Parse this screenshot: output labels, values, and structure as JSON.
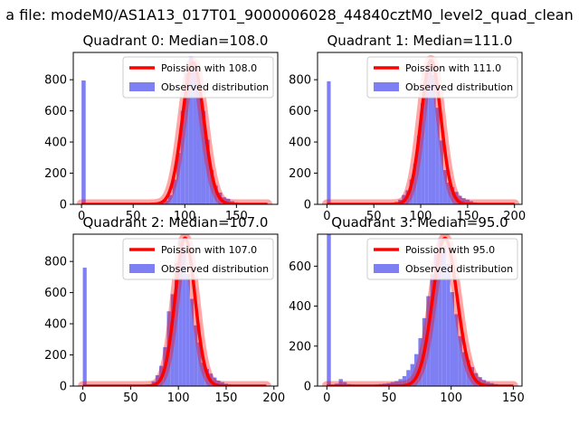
{
  "figure": {
    "suptitle": "a file: modeM0/AS1A13_017T01_9000006028_44840cztM0_level2_quad_clean"
  },
  "colors": {
    "hist": "#7f7ff4",
    "fit": "#ff0000",
    "axis": "#000000"
  },
  "chart_data": [
    {
      "type": "bar",
      "title": "Quadrant 0: Median=108.0",
      "legend": {
        "position": "top-right",
        "entries": [
          "Poission with 108.0",
          "Observed distribution"
        ]
      },
      "xlim": [
        -8,
        190
      ],
      "ylim": [
        0,
        975
      ],
      "xticks": [
        0,
        50,
        100,
        150
      ],
      "yticks": [
        0,
        200,
        400,
        600,
        800
      ],
      "bin_width": 4,
      "hist": {
        "x": [
          0,
          4,
          8,
          12,
          16,
          20,
          24,
          28,
          32,
          36,
          40,
          44,
          48,
          52,
          56,
          60,
          64,
          68,
          72,
          76,
          80,
          84,
          88,
          92,
          96,
          100,
          104,
          108,
          112,
          116,
          120,
          124,
          128,
          132,
          136,
          140,
          144,
          148,
          152,
          156,
          160,
          164,
          168,
          172,
          176
        ],
        "y": [
          795,
          5,
          0,
          0,
          0,
          0,
          0,
          0,
          0,
          0,
          0,
          0,
          0,
          0,
          0,
          0,
          0,
          0,
          3,
          8,
          25,
          60,
          160,
          330,
          600,
          840,
          950,
          880,
          770,
          600,
          415,
          220,
          120,
          75,
          45,
          35,
          20,
          12,
          8,
          5,
          3,
          2,
          1,
          1,
          0
        ]
      },
      "fit": {
        "name": "Poission with 108.0",
        "mean": 108.0,
        "peak": 910,
        "x_range": [
          0,
          180
        ]
      }
    },
    {
      "type": "bar",
      "title": "Quadrant 1: Median=111.0",
      "legend": {
        "position": "top-right",
        "entries": [
          "Poission with 111.0",
          "Observed distribution"
        ]
      },
      "xlim": [
        -10,
        208
      ],
      "ylim": [
        0,
        975
      ],
      "xticks": [
        0,
        50,
        100,
        150,
        200
      ],
      "yticks": [
        0,
        200,
        400,
        600,
        800
      ],
      "bin_width": 4,
      "hist": {
        "x": [
          0,
          4,
          8,
          12,
          16,
          20,
          24,
          28,
          32,
          36,
          40,
          44,
          48,
          52,
          56,
          60,
          64,
          68,
          72,
          76,
          80,
          84,
          88,
          92,
          96,
          100,
          104,
          108,
          112,
          116,
          120,
          124,
          128,
          132,
          136,
          140,
          144,
          148,
          152,
          156,
          160,
          164,
          168,
          172,
          176,
          180,
          184,
          188,
          192,
          196
        ],
        "y": [
          790,
          8,
          3,
          0,
          0,
          0,
          0,
          0,
          0,
          0,
          0,
          0,
          0,
          0,
          0,
          0,
          0,
          5,
          15,
          30,
          60,
          90,
          160,
          260,
          440,
          650,
          840,
          920,
          830,
          620,
          410,
          220,
          140,
          110,
          80,
          55,
          40,
          30,
          20,
          12,
          8,
          5,
          3,
          2,
          1,
          1,
          0,
          0,
          0,
          0
        ]
      },
      "fit": {
        "name": "Poission with 111.0",
        "mean": 111.0,
        "peak": 925,
        "x_range": [
          0,
          200
        ]
      }
    },
    {
      "type": "bar",
      "title": "Quadrant 2: Median=107.0",
      "legend": {
        "position": "top-right",
        "entries": [
          "Poission with 107.0",
          "Observed distribution"
        ]
      },
      "xlim": [
        -10,
        204
      ],
      "ylim": [
        0,
        975
      ],
      "xticks": [
        0,
        50,
        100,
        150,
        200
      ],
      "yticks": [
        0,
        200,
        400,
        600,
        800
      ],
      "bin_width": 4,
      "hist": {
        "x": [
          0,
          4,
          8,
          12,
          16,
          20,
          24,
          28,
          32,
          36,
          40,
          44,
          48,
          52,
          56,
          60,
          64,
          68,
          72,
          76,
          80,
          84,
          88,
          92,
          96,
          100,
          104,
          108,
          112,
          116,
          120,
          124,
          128,
          132,
          136,
          140,
          144,
          148,
          152,
          156,
          160,
          164,
          168,
          172,
          176,
          180,
          184,
          188
        ],
        "y": [
          760,
          0,
          0,
          0,
          0,
          0,
          0,
          0,
          0,
          0,
          0,
          0,
          0,
          0,
          0,
          0,
          3,
          10,
          30,
          70,
          130,
          250,
          480,
          590,
          790,
          940,
          880,
          720,
          560,
          390,
          280,
          150,
          110,
          80,
          55,
          35,
          25,
          15,
          10,
          6,
          4,
          3,
          2,
          1,
          1,
          0,
          0,
          0
        ]
      },
      "fit": {
        "name": "Poission with 107.0",
        "mean": 107.0,
        "peak": 950,
        "x_range": [
          0,
          192
        ]
      }
    },
    {
      "type": "bar",
      "title": "Quadrant 3: Median=95.0",
      "legend": {
        "position": "top-right",
        "entries": [
          "Poission with 95.0",
          "Observed distribution"
        ]
      },
      "xlim": [
        -7.5,
        157
      ],
      "ylim": [
        0,
        760
      ],
      "xticks": [
        0,
        50,
        100,
        150
      ],
      "yticks": [
        0,
        200,
        400,
        600
      ],
      "bin_width": 3.2,
      "hist": {
        "x": [
          0,
          3.2,
          6.4,
          9.6,
          12.8,
          16,
          19.2,
          22.4,
          25.6,
          28.8,
          32,
          35.2,
          38.4,
          41.6,
          44.8,
          48,
          51.2,
          54.4,
          57.6,
          60.8,
          64,
          67.2,
          70.4,
          73.6,
          76.8,
          80,
          83.2,
          86.4,
          89.6,
          92.8,
          96,
          99.2,
          102.4,
          105.6,
          108.8,
          112,
          115.2,
          118.4,
          121.6,
          124.8,
          128,
          131.2,
          134.4,
          137.6,
          140.8,
          144,
          147.2
        ],
        "y": [
          760,
          5,
          12,
          35,
          20,
          10,
          8,
          5,
          4,
          3,
          3,
          5,
          8,
          10,
          12,
          15,
          20,
          25,
          35,
          50,
          80,
          110,
          160,
          240,
          340,
          450,
          560,
          660,
          740,
          700,
          610,
          470,
          360,
          250,
          170,
          130,
          95,
          65,
          45,
          30,
          20,
          15,
          10,
          6,
          4,
          2,
          1
        ]
      },
      "fit": {
        "name": "Poission with 95.0",
        "mean": 95.0,
        "peak": 740,
        "x_range": [
          0,
          150
        ]
      }
    }
  ]
}
